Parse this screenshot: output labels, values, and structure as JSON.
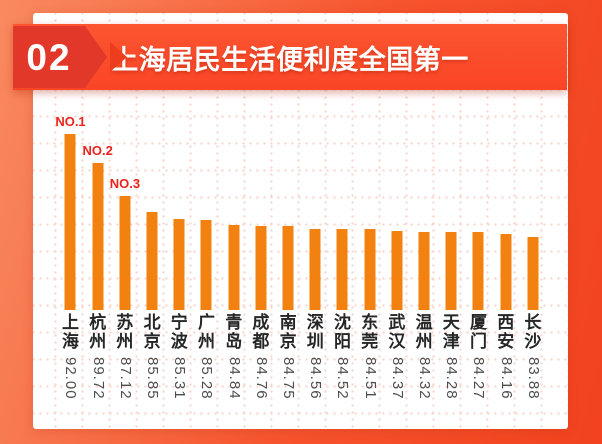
{
  "header": {
    "badge_number": "02",
    "title": "上海居民生活便利度全国第一"
  },
  "chart_data": {
    "type": "bar",
    "title": "上海居民生活便利度全国第一",
    "categories": [
      "上海",
      "杭州",
      "苏州",
      "北京",
      "宁波",
      "广州",
      "青岛",
      "成都",
      "南京",
      "深圳",
      "沈阳",
      "东莞",
      "武汉",
      "温州",
      "天津",
      "厦门",
      "西安",
      "长沙"
    ],
    "values": [
      92.0,
      89.72,
      87.12,
      85.85,
      85.31,
      85.28,
      84.84,
      84.76,
      84.75,
      84.56,
      84.52,
      84.51,
      84.37,
      84.32,
      84.28,
      84.27,
      84.16,
      83.88
    ],
    "value_labels": [
      "92.00",
      "89.72",
      "87.12",
      "85.85",
      "85.31",
      "85.28",
      "84.84",
      "84.76",
      "84.75",
      "84.56",
      "84.52",
      "84.51",
      "84.37",
      "84.32",
      "84.28",
      "84.27",
      "84.16",
      "83.88"
    ],
    "rank_annotations": [
      {
        "index": 0,
        "label": "NO.1"
      },
      {
        "index": 1,
        "label": "NO.2"
      },
      {
        "index": 2,
        "label": "NO.3"
      }
    ],
    "xlabel": "",
    "ylabel": "",
    "ylim": [
      78.2,
      92.6
    ],
    "legend": "none",
    "grid": "dotted-pink",
    "bar_color": "#F28110",
    "rank_label_color": "#E8251C"
  },
  "colors": {
    "background_start": "#F98A60",
    "background_end": "#F2421F",
    "banner": "#FA4A26",
    "badge": "#E2382A",
    "card": "#FFFFFF",
    "city_label": "#262626",
    "value_label": "#4D4D4D"
  }
}
